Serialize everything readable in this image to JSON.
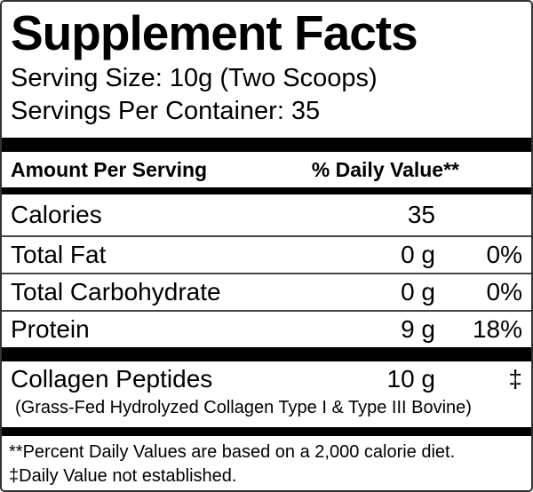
{
  "label": {
    "title": "Supplement Facts",
    "serving_size": "Serving Size: 10g (Two Scoops)",
    "servings_per_container": "Servings Per Container: 35",
    "table_header": {
      "amount_per_serving": "Amount Per Serving",
      "daily_value": "% Daily Value**"
    },
    "rows": [
      {
        "name": "Calories",
        "amount": "35",
        "daily_value": ""
      },
      {
        "name": "Total Fat",
        "amount": "0 g",
        "daily_value": "0%"
      },
      {
        "name": "Total Carbohydrate",
        "amount": "0 g",
        "daily_value": "0%"
      },
      {
        "name": "Protein",
        "amount": "9 g",
        "daily_value": "18%"
      }
    ],
    "ingredient_row": {
      "name": "Collagen Peptides",
      "amount": "10 g",
      "daily_value": "‡",
      "description": "(Grass-Fed Hydrolyzed Collagen Type I & Type III Bovine)"
    },
    "footnotes": [
      "**Percent Daily Values are based on a 2,000 calorie diet.",
      "‡Daily Value not established."
    ]
  },
  "colors": {
    "text": "#000000",
    "background": "#ffffff",
    "thick_bar": "#000000",
    "thin_divider": "#454545",
    "border": "#333333"
  }
}
